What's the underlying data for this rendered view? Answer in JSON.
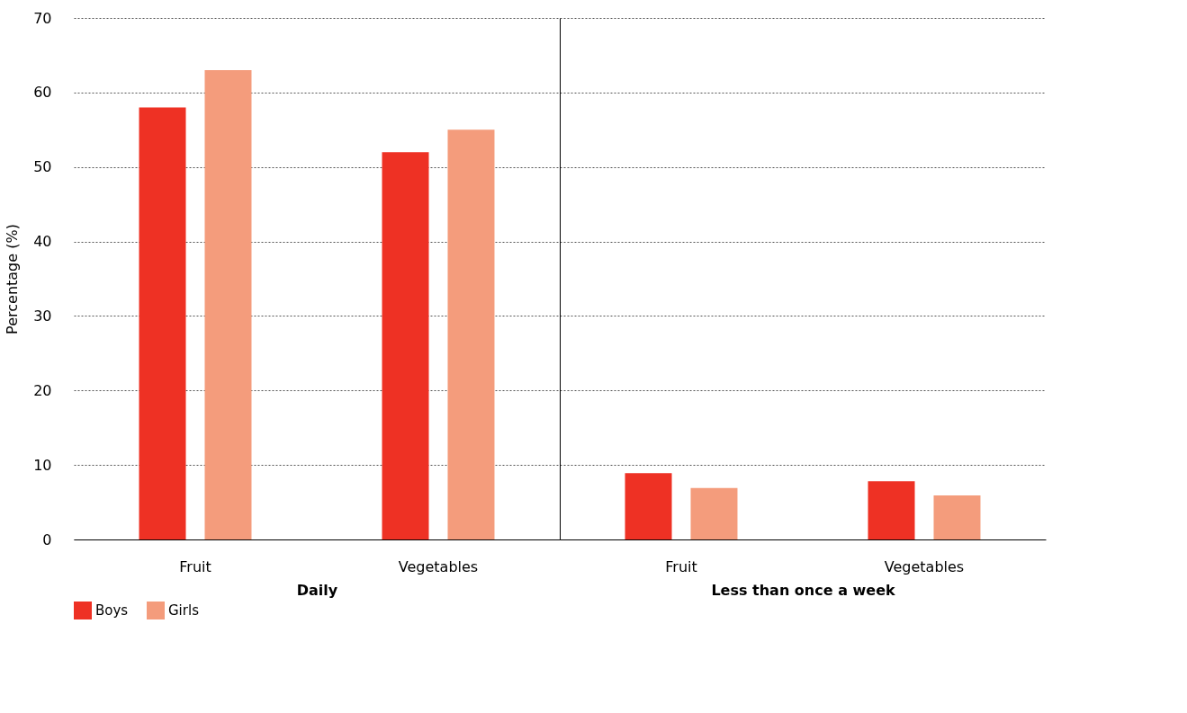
{
  "chart_data": [
    {
      "type": "bar",
      "categories": [
        "Fruit",
        "Vegetables"
      ],
      "xlabel": "Daily",
      "ylabel": "Percentage (%)",
      "ylim": [
        0,
        70
      ],
      "yticks": [
        0,
        10,
        20,
        30,
        40,
        50,
        60,
        70
      ],
      "grid": "y",
      "legend": "bottom left",
      "series": [
        {
          "name": "Boys",
          "color": "#ee3124",
          "values": [
            58,
            52
          ]
        },
        {
          "name": "Girls",
          "color": "#f49c7c",
          "values": [
            63,
            55
          ]
        }
      ]
    },
    {
      "type": "bar",
      "categories": [
        "Fruit",
        "Vegetables"
      ],
      "xlabel": "Less than once a week",
      "ylim": [
        0,
        70
      ],
      "yticks": [
        0,
        10,
        20,
        30,
        40,
        50,
        60,
        70
      ],
      "grid": "y",
      "tick_labels": "x",
      "series": [
        {
          "color": "#ee3124",
          "values": [
            8.9,
            7.8
          ]
        },
        {
          "color": "#f49c7c",
          "values": [
            6.9,
            5.9
          ]
        }
      ]
    }
  ]
}
